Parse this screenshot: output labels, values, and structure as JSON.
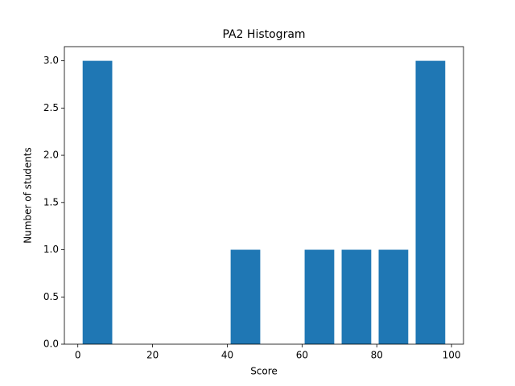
{
  "chart_data": {
    "type": "histogram",
    "title": "PA2 Histogram",
    "xlabel": "Score",
    "ylabel": "Number of students",
    "bins": [
      0.3,
      10.2,
      20.1,
      30.0,
      39.9,
      49.8,
      59.7,
      69.6,
      79.5,
      89.4,
      99.3
    ],
    "values": [
      3,
      0,
      0,
      0,
      1,
      0,
      1,
      1,
      1,
      3
    ],
    "color": "#1f77b4",
    "rwidth": 0.8,
    "xlim": [
      -3.6,
      103.2
    ],
    "xticks": [
      0,
      20,
      40,
      60,
      80,
      100
    ],
    "ylim": [
      0,
      3.15
    ],
    "yticks": [
      {
        "value": 0,
        "label": "0.0"
      },
      {
        "value": 0.5,
        "label": "0.5"
      },
      {
        "value": 1,
        "label": "1.0"
      },
      {
        "value": 1.5,
        "label": "1.5"
      },
      {
        "value": 2,
        "label": "2.0"
      },
      {
        "value": 2.5,
        "label": "2.5"
      },
      {
        "value": 3,
        "label": "3.0"
      }
    ],
    "grid": false
  }
}
